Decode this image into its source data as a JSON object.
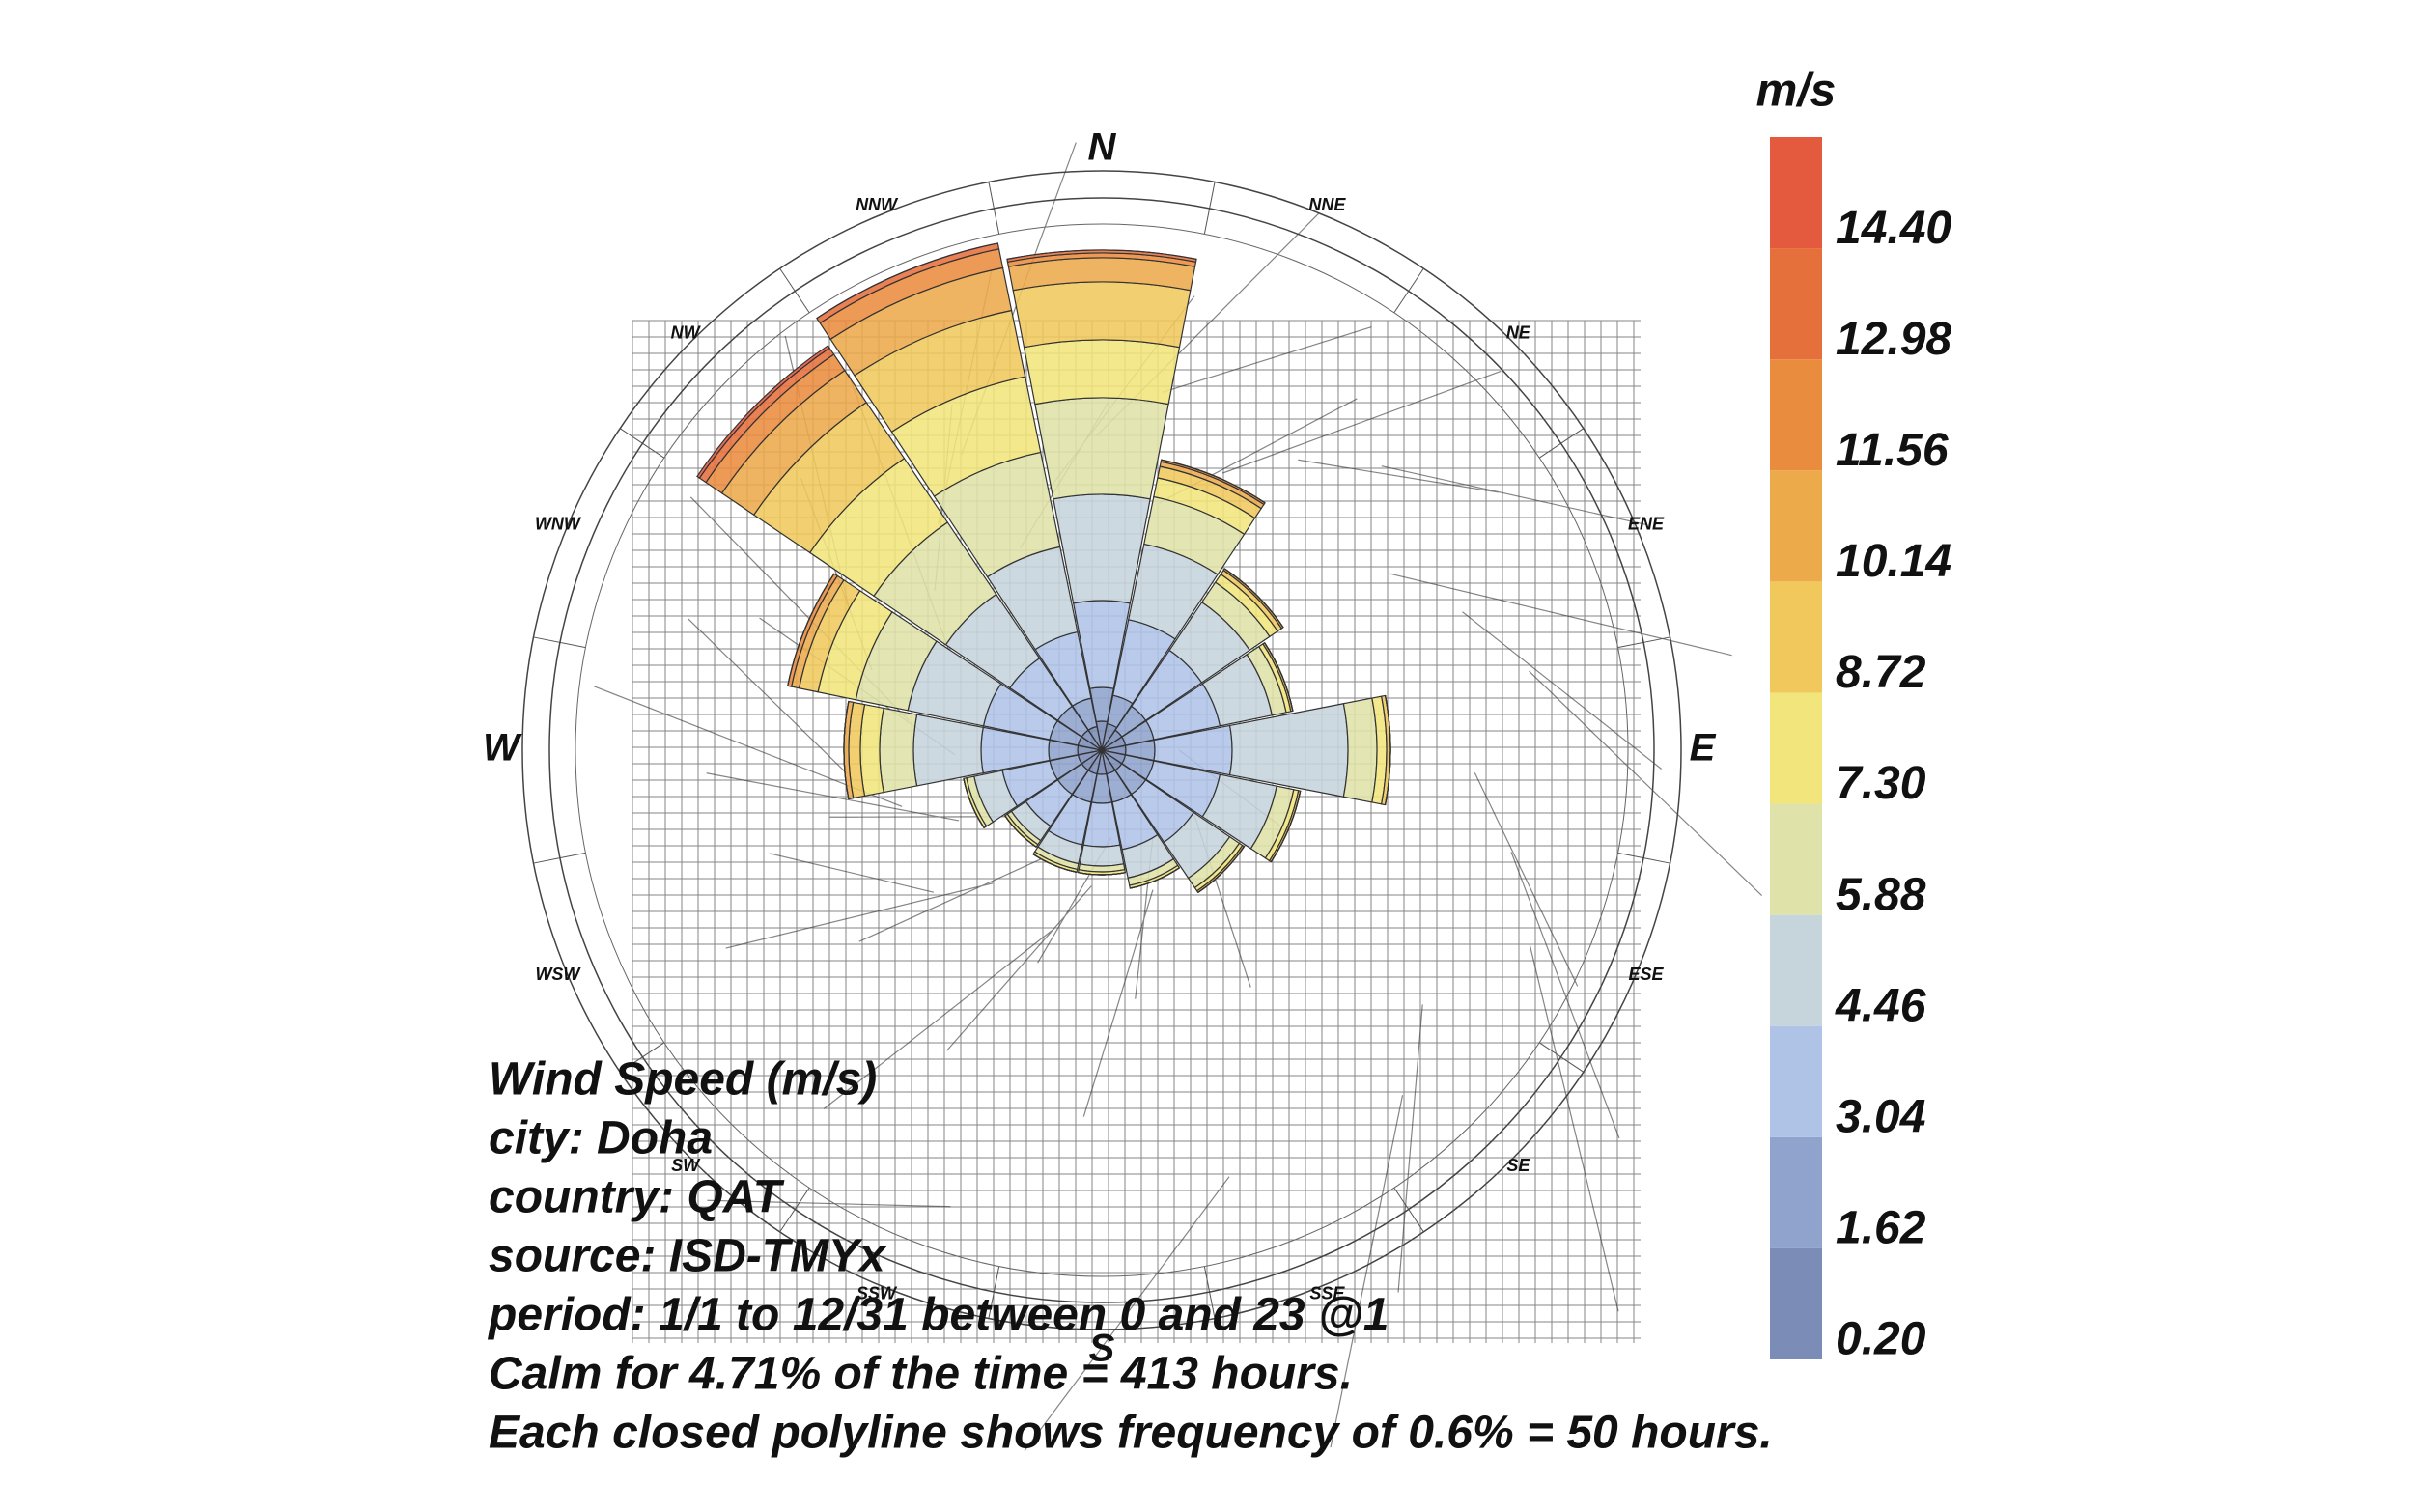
{
  "chart_data": {
    "type": "wind_rose",
    "directions": [
      "N",
      "NNE",
      "NE",
      "ENE",
      "E",
      "ESE",
      "SE",
      "SSE",
      "S",
      "SSW",
      "SW",
      "WSW",
      "W",
      "WNW",
      "NW",
      "NNW"
    ],
    "series": [
      {
        "color": "#7b8cb7",
        "values": [
          30,
          28,
          25,
          25,
          25,
          25,
          25,
          25,
          25,
          25,
          25,
          25,
          25,
          25,
          25,
          25
        ]
      },
      {
        "color": "#8fa3cd",
        "values": [
          35,
          30,
          30,
          30,
          30,
          30,
          30,
          30,
          30,
          30,
          30,
          30,
          30,
          30,
          30,
          30
        ]
      },
      {
        "color": "#afc3e7",
        "values": [
          90,
          80,
          70,
          70,
          80,
          70,
          60,
          50,
          45,
          45,
          40,
          50,
          70,
          70,
          60,
          70
        ]
      },
      {
        "color": "#c6d4dc",
        "values": [
          110,
          80,
          60,
          55,
          120,
          60,
          45,
          30,
          20,
          20,
          18,
          30,
          70,
          80,
          80,
          90
        ]
      },
      {
        "color": "#dfe3a9",
        "values": [
          100,
          50,
          25,
          15,
          30,
          18,
          12,
          8,
          6,
          6,
          5,
          8,
          35,
          55,
          90,
          100
        ]
      },
      {
        "color": "#f1e57b",
        "values": [
          60,
          20,
          10,
          5,
          10,
          5,
          4,
          3,
          3,
          3,
          3,
          3,
          20,
          40,
          80,
          80
        ]
      },
      {
        "color": "#f0c85c",
        "values": [
          60,
          12,
          5,
          2,
          4,
          2,
          2,
          0,
          0,
          0,
          0,
          0,
          12,
          20,
          70,
          70
        ]
      },
      {
        "color": "#ecaa4b",
        "values": [
          25,
          5,
          2,
          0,
          0,
          0,
          0,
          0,
          0,
          0,
          0,
          0,
          5,
          8,
          40,
          45
        ]
      },
      {
        "color": "#e98c3e",
        "values": [
          5,
          2,
          0,
          0,
          0,
          0,
          0,
          0,
          0,
          0,
          0,
          0,
          0,
          4,
          20,
          20
        ]
      },
      {
        "color": "#e6703c",
        "values": [
          3,
          0,
          0,
          0,
          0,
          0,
          0,
          0,
          0,
          0,
          0,
          0,
          0,
          0,
          8,
          6
        ]
      },
      {
        "color": "#e45a3e",
        "values": [
          0,
          0,
          0,
          0,
          0,
          0,
          0,
          0,
          0,
          0,
          0,
          0,
          0,
          0,
          3,
          0
        ]
      }
    ],
    "legend_title": "m/s",
    "clim": [
      0.2,
      15.82
    ],
    "legend_ticks": [
      {
        "value": 0.2,
        "label": "0.20"
      },
      {
        "value": 1.62,
        "label": "1.62"
      },
      {
        "value": 3.04,
        "label": "3.04"
      },
      {
        "value": 4.46,
        "label": "4.46"
      },
      {
        "value": 5.88,
        "label": "5.88"
      },
      {
        "value": 7.3,
        "label": "7.30"
      },
      {
        "value": 8.72,
        "label": "8.72"
      },
      {
        "value": 10.14,
        "label": "10.14"
      },
      {
        "value": 11.56,
        "label": "11.56"
      },
      {
        "value": 12.98,
        "label": "12.98"
      },
      {
        "value": 14.4,
        "label": "14.40"
      }
    ],
    "info": [
      "Wind Speed (m/s)",
      "city: Doha",
      "country: QAT",
      "source: ISD-TMYx",
      "period: 1/1 to 12/31 between 0 and 23 @1",
      "Calm for 4.71% of the time = 413 hours.",
      "Each closed polyline shows frequency of 0.6% = 50 hours."
    ]
  }
}
